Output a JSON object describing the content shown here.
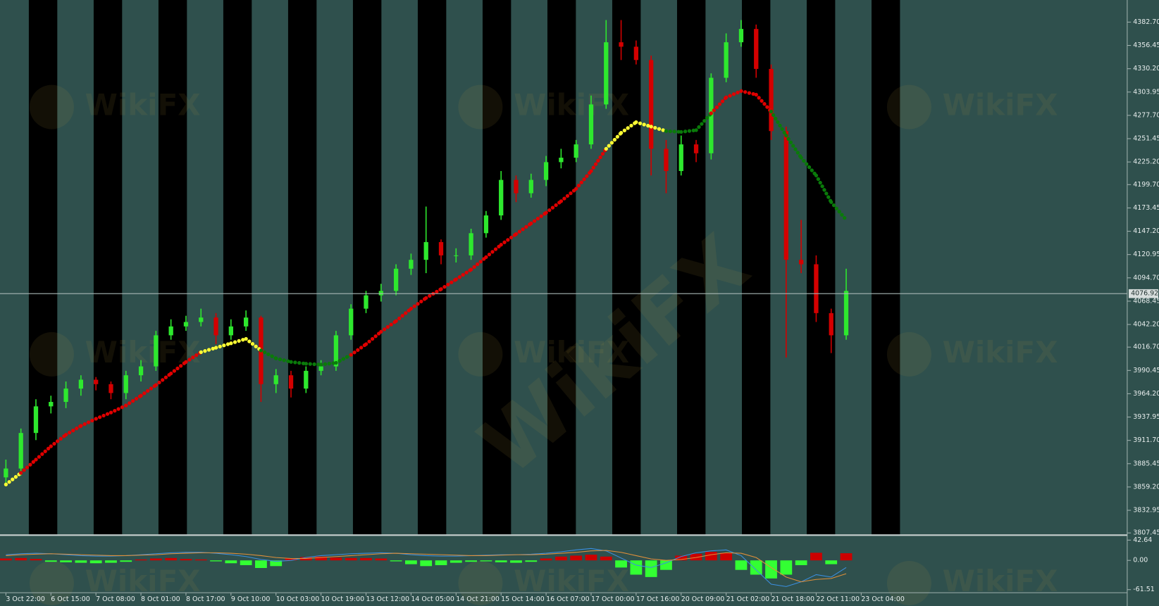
{
  "chart_data": {
    "type": "candlestick",
    "watermark": "WikiFX",
    "categories": [
      "3 Oct 22:00",
      null,
      null,
      "6 Oct 15:00",
      null,
      null,
      "7 Oct 08:00",
      null,
      null,
      "8 Oct 01:00",
      null,
      null,
      "8 Oct 17:00",
      null,
      null,
      "9 Oct 10:00",
      null,
      null,
      "10 Oct 03:00",
      null,
      null,
      "10 Oct 19:00",
      null,
      null,
      "13 Oct 12:00",
      null,
      null,
      "14 Oct 05:00",
      null,
      null,
      "14 Oct 21:00",
      null,
      null,
      "15 Oct 14:00",
      null,
      null,
      "16 Oct 07:00",
      null,
      null,
      "17 Oct 00:00",
      null,
      null,
      "17 Oct 16:00",
      null,
      null,
      "20 Oct 09:00",
      null,
      null,
      "21 Oct 02:00",
      null,
      null,
      "21 Oct 18:00",
      null,
      null,
      "22 Oct 11:00",
      null,
      null,
      "23 Oct 04:00"
    ],
    "open": [
      3870,
      3880,
      3920,
      3950,
      3955,
      3970,
      3980,
      3975,
      3965,
      3985,
      3995,
      4030,
      4040,
      4045,
      4050,
      4030,
      4040,
      4050,
      3975,
      3985,
      3970,
      3990,
      3995,
      4030,
      4060,
      4075,
      4080,
      4105,
      4115,
      4135,
      4120,
      4120,
      4145,
      4165,
      4205,
      4190,
      4205,
      4225,
      4230,
      4245,
      4290,
      4360,
      4355,
      4340,
      4240,
      4215,
      4245,
      4235,
      4320,
      4360,
      4375,
      4330,
      4260,
      4115,
      4110,
      4055,
      4030,
      null
    ],
    "high": [
      3890,
      3925,
      3958,
      3962,
      3978,
      3985,
      3983,
      3978,
      3990,
      4002,
      4035,
      4048,
      4052,
      4060,
      4055,
      4048,
      4058,
      4052,
      3992,
      3990,
      3995,
      4002,
      4035,
      4065,
      4080,
      4088,
      4110,
      4122,
      4175,
      4138,
      4128,
      4150,
      4170,
      4215,
      4210,
      4212,
      4232,
      4240,
      4250,
      4300,
      4385,
      4385,
      4362,
      4345,
      4250,
      4255,
      4250,
      4325,
      4370,
      4385,
      4380,
      4335,
      4265,
      4160,
      4120,
      4060,
      4105,
      null
    ],
    "low": [
      3862,
      3872,
      3912,
      3942,
      3948,
      3962,
      3968,
      3958,
      3958,
      3978,
      3990,
      4025,
      4035,
      4040,
      4020,
      4025,
      4035,
      3955,
      3965,
      3960,
      3965,
      3985,
      3990,
      4025,
      4055,
      4068,
      4075,
      4098,
      4100,
      4110,
      4112,
      4115,
      4140,
      4160,
      4180,
      4185,
      4198,
      4218,
      4225,
      4240,
      4285,
      4340,
      4335,
      4210,
      4190,
      4210,
      4225,
      4228,
      4315,
      4355,
      4320,
      4250,
      4005,
      4100,
      4045,
      4010,
      4025,
      null
    ],
    "close": [
      3880,
      3920,
      3950,
      3955,
      3970,
      3980,
      3975,
      3965,
      3985,
      3995,
      4030,
      4040,
      4045,
      4050,
      4030,
      4040,
      4050,
      3975,
      3985,
      3970,
      3990,
      3995,
      4030,
      4060,
      4075,
      4080,
      4105,
      4115,
      4135,
      4120,
      4120,
      4145,
      4165,
      4205,
      4190,
      4205,
      4225,
      4230,
      4245,
      4290,
      4360,
      4355,
      4340,
      4240,
      4215,
      4245,
      4235,
      4320,
      4360,
      4375,
      4330,
      4260,
      4115,
      4110,
      4055,
      4030,
      4080,
      null
    ],
    "up_color": "#2ee82e",
    "down_color": "#d40000",
    "ylim": [
      3805.8,
      4407.6
    ],
    "yticks": [
      {
        "value": 4382.7,
        "label": "4382.70"
      },
      4356.45,
      {
        "value": 4330.2,
        "label": "4330.20"
      },
      4303.95,
      {
        "value": 4277.7,
        "label": "4277.70"
      },
      4251.45,
      {
        "value": 4225.2,
        "label": "4225.20"
      },
      {
        "value": 4199.7,
        "label": "4199.70"
      },
      4173.45,
      {
        "value": 4147.2,
        "label": "4147.20"
      },
      4120.95,
      {
        "value": 4094.7,
        "label": "4094.70"
      },
      4068.45,
      {
        "value": 4042.2,
        "label": "4042.20"
      },
      {
        "value": 4016.7,
        "label": "4016.70"
      },
      3990.45,
      {
        "value": 3964.2,
        "label": "3964.20"
      },
      3937.95,
      {
        "value": 3911.7,
        "label": "3911.70"
      },
      3885.45,
      {
        "value": 3859.2,
        "label": "3859.20"
      },
      3832.95,
      3807.45
    ],
    "bid": 4076.92,
    "ma": {
      "values": [
        3862,
        3875,
        3890,
        3905,
        3918,
        3928,
        3936,
        3943,
        3951,
        3962,
        3974,
        3987,
        4000,
        4011,
        4016,
        4021,
        4026,
        4013,
        4004,
        4000,
        3998,
        3997,
        3999,
        4008,
        4020,
        4034,
        4046,
        4060,
        4072,
        4082,
        4093,
        4104,
        4118,
        4132,
        4144,
        4156,
        4168,
        4181,
        4195,
        4215,
        4240,
        4258,
        4270,
        4265,
        4260,
        4259,
        4261,
        4280,
        4298,
        4305,
        4301,
        4282,
        4255,
        4230,
        4210,
        4180,
        4160,
        null
      ],
      "colors": [
        "#ffff33",
        "#e00000",
        "#e00000",
        "#e00000",
        "#e00000",
        "#e00000",
        "#e00000",
        "#e00000",
        "#e00000",
        "#e00000",
        "#e00000",
        "#e00000",
        "#e00000",
        "#ffff33",
        "#ffff33",
        "#ffff33",
        "#ffff33",
        "#0a7a0a",
        "#0a7a0a",
        "#0a7a0a",
        "#0a7a0a",
        "#0a7a0a",
        "#0a7a0a",
        "#e00000",
        "#e00000",
        "#e00000",
        "#e00000",
        "#e00000",
        "#e00000",
        "#e00000",
        "#e00000",
        "#e00000",
        "#e00000",
        "#e00000",
        "#e00000",
        "#e00000",
        "#e00000",
        "#e00000",
        "#e00000",
        "#e00000",
        "#ffff33",
        "#ffff33",
        "#ffff33",
        "#ffff33",
        "#0a7a0a",
        "#0a7a0a",
        "#0a7a0a",
        "#e00000",
        "#e00000",
        "#e00000",
        "#e00000",
        "#0a7a0a",
        "#0a7a0a",
        "#0a7a0a",
        "#0a7a0a",
        "#0a7a0a",
        "#0a7a0a",
        null
      ]
    },
    "macd": {
      "type": "bar",
      "values": [
        4,
        5,
        3,
        -3,
        -4,
        -5,
        -6,
        -5,
        -3,
        2,
        4,
        5,
        3,
        2,
        -2,
        -6,
        -10,
        -16,
        -12,
        4,
        7,
        8,
        6,
        5,
        5,
        4,
        -2,
        -8,
        -12,
        -10,
        -5,
        -3,
        -2,
        -4,
        -5,
        -3,
        4,
        8,
        10,
        12,
        8,
        -15,
        -30,
        -35,
        -20,
        10,
        14,
        18,
        16,
        -20,
        -30,
        -38,
        -30,
        -10,
        16,
        -8,
        15,
        null
      ],
      "up_color": "#cc0000",
      "down_color": "#33ff33",
      "series": [
        {
          "color": "#3b8fe0",
          "values": [
            12,
            14,
            15,
            14,
            12,
            10,
            9,
            9,
            10,
            12,
            14,
            16,
            17,
            17,
            15,
            12,
            8,
            2,
            -2,
            0,
            6,
            10,
            12,
            14,
            15,
            16,
            15,
            12,
            10,
            9,
            9,
            10,
            11,
            12,
            12,
            13,
            15,
            18,
            22,
            25,
            20,
            5,
            -10,
            -15,
            -5,
            8,
            16,
            20,
            22,
            10,
            -20,
            -50,
            -55,
            -45,
            -30,
            -35,
            -15,
            null
          ]
        },
        {
          "color": "#e0903b",
          "values": [
            10,
            12,
            13,
            14,
            13,
            12,
            11,
            10,
            10,
            11,
            12,
            14,
            15,
            16,
            16,
            15,
            13,
            10,
            6,
            4,
            4,
            6,
            8,
            10,
            12,
            14,
            15,
            14,
            13,
            12,
            11,
            10,
            10,
            11,
            12,
            12,
            13,
            15,
            17,
            20,
            21,
            17,
            10,
            3,
            0,
            2,
            6,
            12,
            16,
            15,
            6,
            -15,
            -35,
            -45,
            -40,
            -38,
            -28,
            null
          ]
        }
      ],
      "ylim": [
        -68,
        50
      ],
      "yticks": [
        42.64,
        {
          "value": 0,
          "label": "0.00"
        },
        -61.51
      ]
    }
  }
}
